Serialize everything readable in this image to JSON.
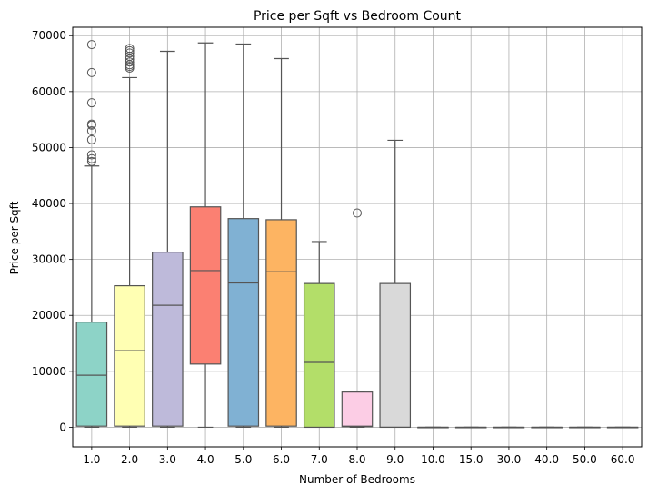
{
  "chart_data": {
    "type": "box",
    "title": "Price per Sqft vs Bedroom Count",
    "xlabel": "Number of Bedrooms",
    "ylabel": "Price per Sqft",
    "ylim": [
      -3500,
      71500
    ],
    "yticks": [
      0,
      10000,
      20000,
      30000,
      40000,
      50000,
      60000,
      70000
    ],
    "grid": true,
    "categories": [
      "1.0",
      "2.0",
      "3.0",
      "4.0",
      "5.0",
      "6.0",
      "7.0",
      "8.0",
      "9.0",
      "10.0",
      "15.0",
      "30.0",
      "40.0",
      "50.0",
      "60.0"
    ],
    "boxes": [
      {
        "category": "1.0",
        "color": "#8dd3c7",
        "whisker_low": 0,
        "q1": 200,
        "median": 9300,
        "q3": 18800,
        "whisker_high": 46700,
        "outliers": [
          47500,
          48000,
          48700,
          51400,
          53000,
          54000,
          54200,
          58000,
          63400,
          68400
        ]
      },
      {
        "category": "2.0",
        "color": "#ffffb3",
        "whisker_low": 0,
        "q1": 200,
        "median": 13700,
        "q3": 25300,
        "whisker_high": 62500,
        "outliers": [
          64200,
          64500,
          64800,
          65300,
          65800,
          66300,
          66900,
          67300,
          67700
        ]
      },
      {
        "category": "3.0",
        "color": "#bebada",
        "whisker_low": 0,
        "q1": 200,
        "median": 21800,
        "q3": 31300,
        "whisker_high": 67200,
        "outliers": []
      },
      {
        "category": "4.0",
        "color": "#fb8072",
        "whisker_low": 0,
        "q1": 11300,
        "median": 28000,
        "q3": 39400,
        "whisker_high": 68700,
        "outliers": []
      },
      {
        "category": "5.0",
        "color": "#80b1d3",
        "whisker_low": 0,
        "q1": 200,
        "median": 25800,
        "q3": 37300,
        "whisker_high": 68500,
        "outliers": []
      },
      {
        "category": "6.0",
        "color": "#fdb462",
        "whisker_low": 0,
        "q1": 200,
        "median": 27800,
        "q3": 37100,
        "whisker_high": 65900,
        "outliers": []
      },
      {
        "category": "7.0",
        "color": "#b3de69",
        "whisker_low": 0,
        "q1": 0,
        "median": 11600,
        "q3": 25700,
        "whisker_high": 33200,
        "outliers": []
      },
      {
        "category": "8.0",
        "color": "#fccde5",
        "whisker_low": 0,
        "q1": 100,
        "median": 200,
        "q3": 6300,
        "whisker_high": 6300,
        "outliers": [
          38300
        ]
      },
      {
        "category": "9.0",
        "color": "#d9d9d9",
        "whisker_low": 0,
        "q1": 0,
        "median": 0,
        "q3": 25700,
        "whisker_high": 51300,
        "outliers": []
      },
      {
        "category": "10.0",
        "color": "#bc80bd",
        "whisker_low": 0,
        "q1": 0,
        "median": 0,
        "q3": 0,
        "whisker_high": 0,
        "outliers": []
      },
      {
        "category": "15.0",
        "color": "#ccebc5",
        "whisker_low": 0,
        "q1": 0,
        "median": 0,
        "q3": 0,
        "whisker_high": 0,
        "outliers": []
      },
      {
        "category": "30.0",
        "color": "#ffed6f",
        "whisker_low": 0,
        "q1": 0,
        "median": 0,
        "q3": 0,
        "whisker_high": 0,
        "outliers": []
      },
      {
        "category": "40.0",
        "color": "#8dd3c7",
        "whisker_low": 0,
        "q1": 0,
        "median": 0,
        "q3": 0,
        "whisker_high": 0,
        "outliers": []
      },
      {
        "category": "50.0",
        "color": "#ffffb3",
        "whisker_low": 0,
        "q1": 0,
        "median": 0,
        "q3": 0,
        "whisker_high": 0,
        "outliers": []
      },
      {
        "category": "60.0",
        "color": "#bebada",
        "whisker_low": 0,
        "q1": 0,
        "median": 0,
        "q3": 0,
        "whisker_high": 0,
        "outliers": []
      }
    ],
    "colors": {
      "grid": "#b0b0b0",
      "line": "#555555",
      "axis": "#000000"
    }
  }
}
